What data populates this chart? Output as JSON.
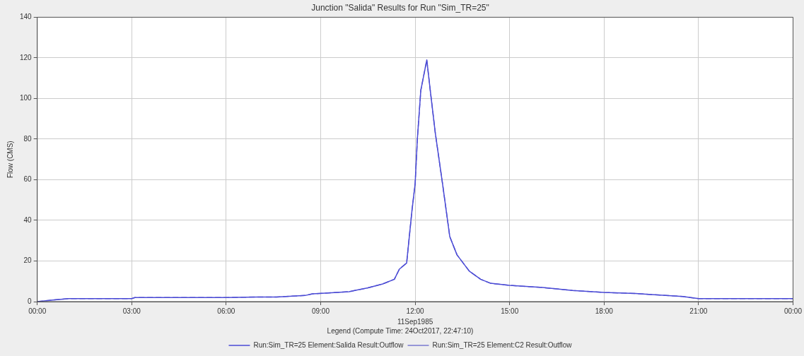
{
  "chart_data": {
    "type": "line",
    "title": "Junction \"Salida\" Results for Run \"Sim_TR=25\"",
    "xlabel": "11Sep1985",
    "ylabel": "Flow (CMS)",
    "legend_title": "Legend (Compute Time: 24Oct2017, 22:47:10)",
    "x": [
      0,
      0.5,
      1,
      3,
      3.1,
      6,
      7,
      7.6,
      8.5,
      8.74,
      9.14,
      9.9,
      10.5,
      10.97,
      11.34,
      11.5,
      11.73,
      11.9,
      12,
      12.07,
      12.18,
      12.37,
      12.48,
      12.64,
      12.87,
      13.1,
      13.33,
      13.72,
      14.08,
      14.4,
      15,
      16,
      17,
      18,
      19,
      19.5,
      20.5,
      21,
      24
    ],
    "series": [
      {
        "name": "Run:Sim_TR=25 Element:Salida Result:Outflow",
        "color": "#4b4bd6",
        "line_style": "solid",
        "values": [
          0,
          0.8,
          1.5,
          1.5,
          2,
          2,
          2.3,
          2.3,
          3,
          3.8,
          4.2,
          4.9,
          6.8,
          8.7,
          11,
          16,
          19,
          45,
          58,
          80,
          104,
          119,
          104,
          83,
          58,
          32,
          23,
          15,
          11,
          9,
          8,
          7,
          5.5,
          4.5,
          4,
          3.5,
          2.5,
          1.5,
          1.5
        ]
      },
      {
        "name": "Run:Sim_TR=25 Element:C2 Result:Outflow",
        "color": "#7a7ad0",
        "line_style": "dashed",
        "values": [
          0,
          0.8,
          1.5,
          1.5,
          2,
          2,
          2.3,
          2.3,
          3,
          3.8,
          4.2,
          4.9,
          6.8,
          8.7,
          11,
          16,
          19,
          45,
          58,
          80,
          104,
          119,
          104,
          83,
          58,
          32,
          23,
          15,
          11,
          9,
          8,
          7,
          5.5,
          4.5,
          4,
          3.5,
          2.5,
          1.5,
          1.5
        ]
      }
    ],
    "xlim": [
      0,
      24
    ],
    "xticks": [
      {
        "value": 0,
        "label": "00:00"
      },
      {
        "value": 3,
        "label": "03:00"
      },
      {
        "value": 6,
        "label": "06:00"
      },
      {
        "value": 9,
        "label": "09:00"
      },
      {
        "value": 12,
        "label": "12:00"
      },
      {
        "value": 15,
        "label": "15:00"
      },
      {
        "value": 18,
        "label": "18:00"
      },
      {
        "value": 21,
        "label": "21:00"
      },
      {
        "value": 24,
        "label": "00:00"
      }
    ],
    "ylim": [
      0,
      140
    ],
    "yticks": [
      0,
      20,
      40,
      60,
      80,
      100,
      120,
      140
    ],
    "grid": true,
    "legend": "bottom",
    "marker": "none"
  }
}
